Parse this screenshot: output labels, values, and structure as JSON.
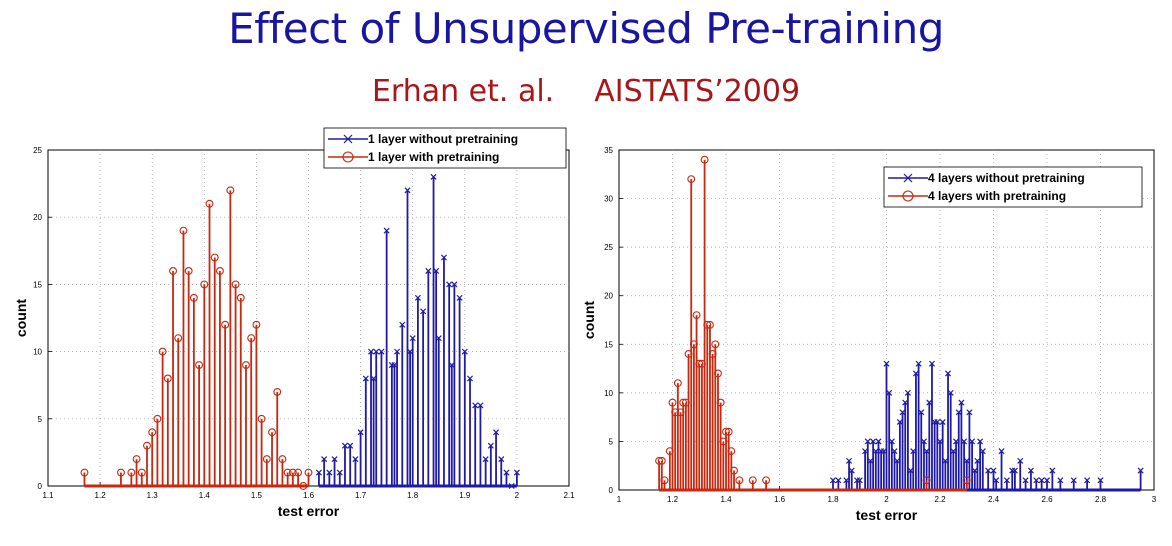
{
  "slide": {
    "title": "Effect of Unsupervised Pre-training",
    "citation_authors": "Erhan et. al.",
    "citation_venue": "AISTATS’2009"
  },
  "colors": {
    "red": "#c8280f",
    "blue": "#1f1aa5",
    "title": "#1a15a0",
    "subtitle": "#a8161a"
  },
  "chart_data": [
    {
      "type": "scatter",
      "style": "stem",
      "title": "",
      "xlabel": "test error",
      "ylabel": "count",
      "xlim": [
        1.1,
        2.1
      ],
      "ylim": [
        0,
        25
      ],
      "xticks": [
        "1.1",
        "1.2",
        "1.3",
        "1.4",
        "1.5",
        "1.6",
        "1.7",
        "1.8",
        "1.9",
        "2",
        "2.1"
      ],
      "yticks": [
        "0",
        "5",
        "10",
        "15",
        "20",
        "25"
      ],
      "grid": true,
      "legend_position": "top-right",
      "series": [
        {
          "name": "1 layer without pretraining",
          "color": "#1f1aa5",
          "marker": "x",
          "points": [
            [
              1.62,
              1
            ],
            [
              1.63,
              2
            ],
            [
              1.64,
              1
            ],
            [
              1.65,
              2
            ],
            [
              1.66,
              1
            ],
            [
              1.67,
              3
            ],
            [
              1.68,
              3
            ],
            [
              1.69,
              2
            ],
            [
              1.7,
              4
            ],
            [
              1.71,
              8
            ],
            [
              1.72,
              10
            ],
            [
              1.725,
              8
            ],
            [
              1.73,
              10
            ],
            [
              1.74,
              10
            ],
            [
              1.75,
              19
            ],
            [
              1.76,
              9
            ],
            [
              1.765,
              9
            ],
            [
              1.77,
              10
            ],
            [
              1.78,
              12
            ],
            [
              1.79,
              22
            ],
            [
              1.795,
              10
            ],
            [
              1.8,
              11
            ],
            [
              1.81,
              14
            ],
            [
              1.82,
              13
            ],
            [
              1.83,
              16
            ],
            [
              1.84,
              23
            ],
            [
              1.845,
              16
            ],
            [
              1.85,
              11
            ],
            [
              1.86,
              17
            ],
            [
              1.87,
              15
            ],
            [
              1.875,
              9
            ],
            [
              1.88,
              15
            ],
            [
              1.89,
              14
            ],
            [
              1.9,
              10
            ],
            [
              1.91,
              8
            ],
            [
              1.92,
              6
            ],
            [
              1.93,
              6
            ],
            [
              1.94,
              2
            ],
            [
              1.95,
              3
            ],
            [
              1.96,
              4
            ],
            [
              1.97,
              2
            ],
            [
              1.98,
              1
            ],
            [
              1.99,
              0
            ],
            [
              2.0,
              1
            ]
          ]
        },
        {
          "name": "1 layer with pretraining",
          "color": "#c8280f",
          "marker": "o",
          "points": [
            [
              1.17,
              1
            ],
            [
              1.24,
              1
            ],
            [
              1.26,
              1
            ],
            [
              1.27,
              2
            ],
            [
              1.28,
              1
            ],
            [
              1.29,
              3
            ],
            [
              1.3,
              4
            ],
            [
              1.31,
              5
            ],
            [
              1.32,
              10
            ],
            [
              1.33,
              8
            ],
            [
              1.34,
              16
            ],
            [
              1.35,
              11
            ],
            [
              1.36,
              19
            ],
            [
              1.37,
              16
            ],
            [
              1.38,
              14
            ],
            [
              1.39,
              9
            ],
            [
              1.4,
              15
            ],
            [
              1.41,
              21
            ],
            [
              1.42,
              17
            ],
            [
              1.43,
              16
            ],
            [
              1.44,
              12
            ],
            [
              1.45,
              22
            ],
            [
              1.46,
              15
            ],
            [
              1.47,
              14
            ],
            [
              1.48,
              9
            ],
            [
              1.49,
              11
            ],
            [
              1.5,
              12
            ],
            [
              1.51,
              5
            ],
            [
              1.52,
              2
            ],
            [
              1.53,
              4
            ],
            [
              1.54,
              7
            ],
            [
              1.55,
              2
            ],
            [
              1.56,
              1
            ],
            [
              1.57,
              1
            ],
            [
              1.58,
              1
            ],
            [
              1.59,
              0
            ],
            [
              1.6,
              1
            ]
          ]
        }
      ]
    },
    {
      "type": "scatter",
      "style": "stem",
      "title": "",
      "xlabel": "test error",
      "ylabel": "count",
      "xlim": [
        1,
        3
      ],
      "ylim": [
        0,
        35
      ],
      "xticks": [
        "1",
        "1.2",
        "1.4",
        "1.6",
        "1.8",
        "2",
        "2.2",
        "2.4",
        "2.6",
        "2.8",
        "3"
      ],
      "yticks": [
        "0",
        "5",
        "10",
        "15",
        "20",
        "25",
        "30",
        "35"
      ],
      "grid": true,
      "legend_position": "top-right",
      "series": [
        {
          "name": "4 layers without pretraining",
          "color": "#1f1aa5",
          "marker": "x",
          "points": [
            [
              1.8,
              1
            ],
            [
              1.82,
              1
            ],
            [
              1.85,
              1
            ],
            [
              1.86,
              3
            ],
            [
              1.87,
              2
            ],
            [
              1.89,
              1
            ],
            [
              1.9,
              1
            ],
            [
              1.92,
              4
            ],
            [
              1.93,
              5
            ],
            [
              1.94,
              3
            ],
            [
              1.95,
              5
            ],
            [
              1.96,
              4
            ],
            [
              1.97,
              5
            ],
            [
              1.98,
              4
            ],
            [
              1.99,
              4
            ],
            [
              2.0,
              13
            ],
            [
              2.01,
              10
            ],
            [
              2.02,
              5
            ],
            [
              2.03,
              4
            ],
            [
              2.04,
              3
            ],
            [
              2.05,
              7
            ],
            [
              2.06,
              8
            ],
            [
              2.07,
              9
            ],
            [
              2.08,
              10
            ],
            [
              2.09,
              2
            ],
            [
              2.1,
              4
            ],
            [
              2.11,
              12
            ],
            [
              2.12,
              13
            ],
            [
              2.13,
              8
            ],
            [
              2.14,
              5
            ],
            [
              2.15,
              4
            ],
            [
              2.16,
              9
            ],
            [
              2.17,
              13
            ],
            [
              2.18,
              7
            ],
            [
              2.19,
              7
            ],
            [
              2.2,
              5
            ],
            [
              2.21,
              7
            ],
            [
              2.22,
              3
            ],
            [
              2.23,
              12
            ],
            [
              2.24,
              10
            ],
            [
              2.25,
              4
            ],
            [
              2.26,
              5
            ],
            [
              2.27,
              8
            ],
            [
              2.28,
              9
            ],
            [
              2.29,
              5
            ],
            [
              2.3,
              3
            ],
            [
              2.31,
              8
            ],
            [
              2.32,
              5
            ],
            [
              2.33,
              2
            ],
            [
              2.34,
              3
            ],
            [
              2.35,
              5
            ],
            [
              2.36,
              4
            ],
            [
              2.38,
              2
            ],
            [
              2.4,
              2
            ],
            [
              2.41,
              1
            ],
            [
              2.43,
              4
            ],
            [
              2.45,
              1
            ],
            [
              2.47,
              2
            ],
            [
              2.48,
              2
            ],
            [
              2.5,
              3
            ],
            [
              2.52,
              1
            ],
            [
              2.54,
              2
            ],
            [
              2.56,
              1
            ],
            [
              2.58,
              1
            ],
            [
              2.6,
              1
            ],
            [
              2.62,
              2
            ],
            [
              2.65,
              1
            ],
            [
              2.7,
              1
            ],
            [
              2.75,
              1
            ],
            [
              2.8,
              1
            ],
            [
              2.95,
              2
            ]
          ]
        },
        {
          "name": "4 layers with pretraining",
          "color": "#c8280f",
          "marker": "o",
          "points": [
            [
              1.15,
              3
            ],
            [
              1.16,
              3
            ],
            [
              1.17,
              1
            ],
            [
              1.19,
              4
            ],
            [
              1.2,
              9
            ],
            [
              1.21,
              8
            ],
            [
              1.22,
              11
            ],
            [
              1.23,
              8
            ],
            [
              1.24,
              9
            ],
            [
              1.25,
              9
            ],
            [
              1.26,
              14
            ],
            [
              1.27,
              32
            ],
            [
              1.28,
              15
            ],
            [
              1.29,
              18
            ],
            [
              1.3,
              13
            ],
            [
              1.31,
              13
            ],
            [
              1.32,
              34
            ],
            [
              1.33,
              17
            ],
            [
              1.34,
              17
            ],
            [
              1.35,
              14
            ],
            [
              1.36,
              15
            ],
            [
              1.37,
              12
            ],
            [
              1.38,
              9
            ],
            [
              1.39,
              5
            ],
            [
              1.4,
              6
            ],
            [
              1.41,
              6
            ],
            [
              1.42,
              4
            ],
            [
              1.43,
              2
            ],
            [
              1.45,
              1
            ],
            [
              1.5,
              1
            ],
            [
              1.55,
              1
            ],
            [
              2.15,
              1
            ],
            [
              2.3,
              1
            ]
          ]
        }
      ]
    }
  ]
}
